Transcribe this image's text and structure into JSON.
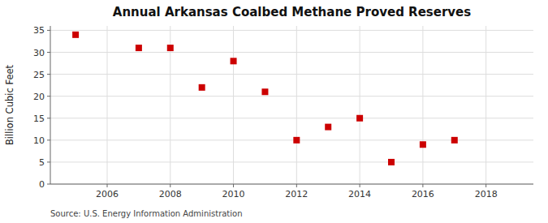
{
  "chart_data": {
    "type": "scatter",
    "title": "Annual Arkansas Coalbed Methane Proved Reserves",
    "y_label": "Billion Cubic Feet",
    "annotations": [
      "Source: U.S. Energy Information Administration"
    ],
    "x": [
      2005,
      2007,
      2008,
      2009,
      2010,
      2011,
      2012,
      2013,
      2014,
      2015,
      2016,
      2017
    ],
    "values": [
      34,
      31,
      31,
      22,
      28,
      21,
      10,
      13,
      15,
      5,
      9,
      10
    ],
    "xlim": [
      2004.2,
      2019.5
    ],
    "ylim": [
      0,
      36
    ],
    "xticks": [
      2006,
      2008,
      2010,
      2012,
      2014,
      2016,
      2018
    ],
    "yticks": [
      0,
      5,
      10,
      15,
      20,
      25,
      30,
      35
    ],
    "color": "#cc0000",
    "marker": "square",
    "grid": true
  }
}
